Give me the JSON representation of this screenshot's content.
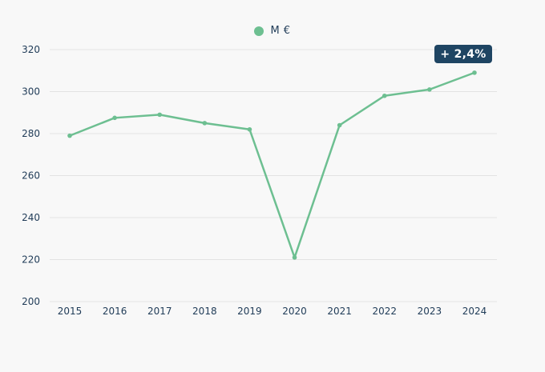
{
  "colors": {
    "series": "#6dbf91",
    "grid": "#e3e3e3",
    "text": "#1f3b57",
    "badge_bg": "#1f4563",
    "background": "#f8f8f8"
  },
  "badge": {
    "text": "+ 2,4%"
  },
  "chart_data": {
    "type": "line",
    "legend_position": "top-center",
    "grid": true,
    "x": [
      "2015",
      "2016",
      "2017",
      "2018",
      "2019",
      "2020",
      "2021",
      "2022",
      "2023",
      "2024"
    ],
    "series": [
      {
        "name": "M €",
        "values": [
          279,
          287.5,
          289,
          285,
          282,
          221,
          284,
          298,
          301,
          309
        ]
      }
    ],
    "ylim": [
      200,
      320
    ],
    "yticks": [
      200,
      220,
      240,
      260,
      280,
      300,
      320
    ],
    "xlabel": "",
    "ylabel": ""
  }
}
